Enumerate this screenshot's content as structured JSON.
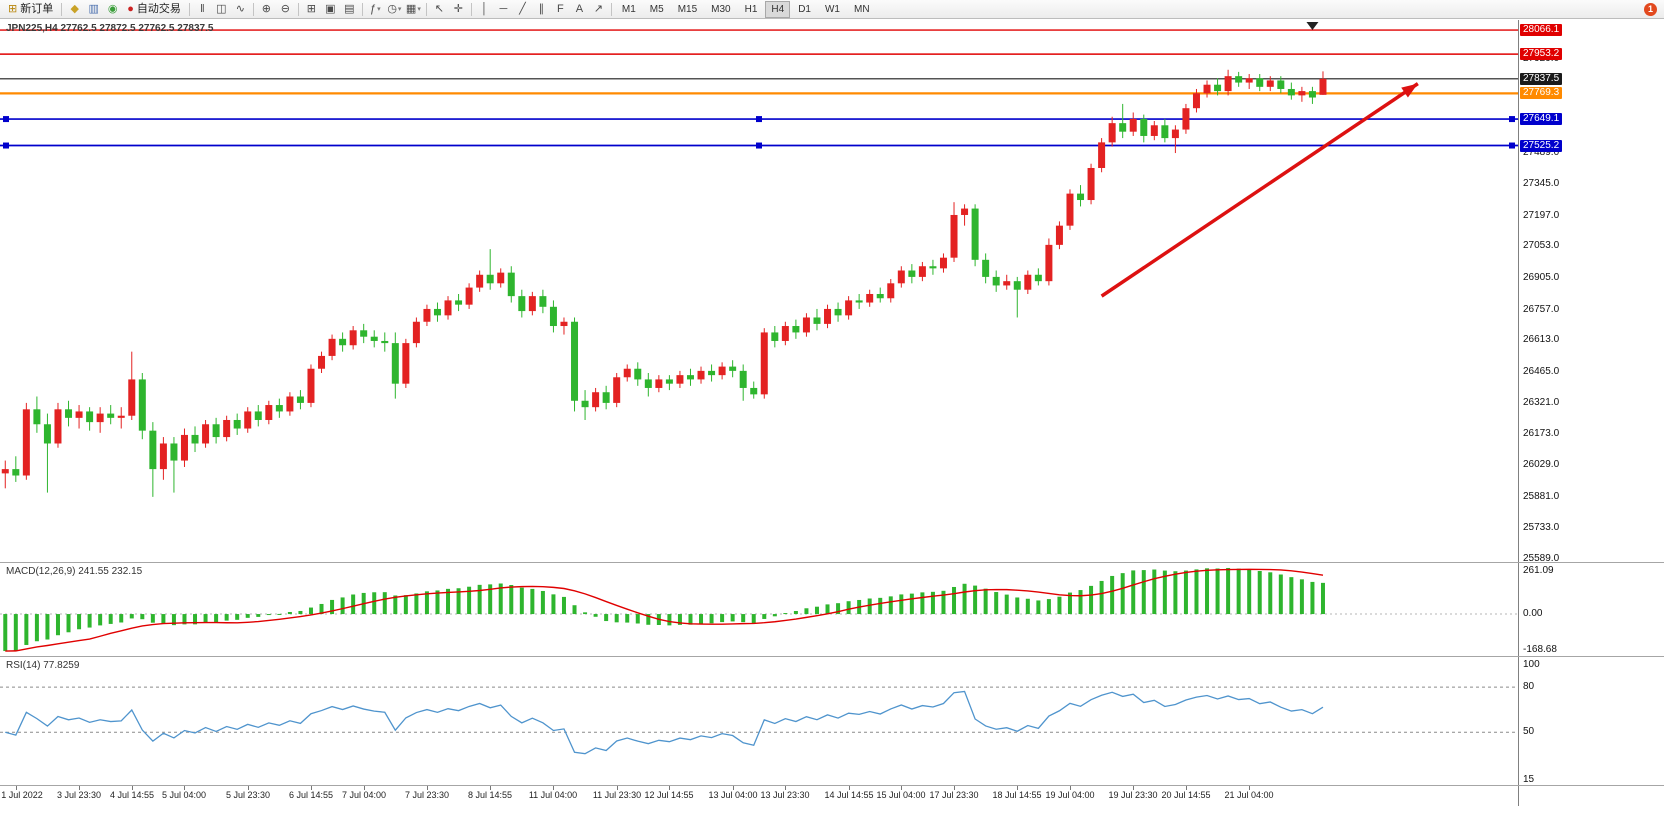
{
  "toolbar": {
    "items": [
      {
        "type": "button",
        "name": "new-order-button",
        "glyph": "⊞",
        "glyph_color": "#b8860b",
        "label": "新订单"
      },
      {
        "type": "sep"
      },
      {
        "type": "icon",
        "name": "depth-of-market-icon",
        "glyph": "◆",
        "color": "#c9a227"
      },
      {
        "type": "icon",
        "name": "charts-grid-icon",
        "glyph": "▥",
        "color": "#4a6fae"
      },
      {
        "type": "icon",
        "name": "navigator-icon",
        "glyph": "◉",
        "color": "#3a9e3a"
      },
      {
        "type": "button",
        "name": "autotrading-button",
        "glyph": "●",
        "glyph_color": "#cc2222",
        "label": "自动交易"
      },
      {
        "type": "sep"
      },
      {
        "type": "icon",
        "name": "bar-chart-type-icon",
        "glyph": "‖"
      },
      {
        "type": "icon",
        "name": "candlestick-type-icon",
        "glyph": "◫"
      },
      {
        "type": "icon",
        "name": "line-chart-type-icon",
        "glyph": "∿"
      },
      {
        "type": "sep"
      },
      {
        "type": "icon",
        "name": "zoom-in-icon",
        "glyph": "⊕"
      },
      {
        "type": "icon",
        "name": "zoom-out-icon",
        "glyph": "⊖"
      },
      {
        "type": "sep"
      },
      {
        "type": "icon",
        "name": "tile-windows-icon",
        "glyph": "⊞"
      },
      {
        "type": "icon",
        "name": "indicators-list-icon",
        "glyph": "▣"
      },
      {
        "type": "icon",
        "name": "objects-list-icon",
        "glyph": "▤"
      },
      {
        "type": "sep"
      },
      {
        "type": "icon",
        "name": "indicators-icon",
        "glyph": "ƒ",
        "dropdown": true
      },
      {
        "type": "icon",
        "name": "periods-icon",
        "glyph": "◷",
        "dropdown": true
      },
      {
        "type": "icon",
        "name": "templates-icon",
        "glyph": "▦",
        "dropdown": true
      },
      {
        "type": "sep"
      },
      {
        "type": "icon",
        "name": "cursor-icon",
        "glyph": "↖"
      },
      {
        "type": "icon",
        "name": "crosshair-icon",
        "glyph": "✛"
      },
      {
        "type": "sep"
      },
      {
        "type": "icon",
        "name": "vertical-line-icon",
        "glyph": "│"
      },
      {
        "type": "icon",
        "name": "horizontal-line-icon",
        "glyph": "─"
      },
      {
        "type": "icon",
        "name": "trendline-icon",
        "glyph": "╱"
      },
      {
        "type": "icon",
        "name": "channel-icon",
        "glyph": "∥"
      },
      {
        "type": "icon",
        "name": "fibonacci-icon",
        "glyph": "F"
      },
      {
        "type": "icon",
        "name": "text-label-icon",
        "glyph": "A"
      },
      {
        "type": "icon",
        "name": "arrows-tool-icon",
        "glyph": "↗"
      },
      {
        "type": "sep"
      },
      {
        "type": "tf",
        "name": "timeframe-switcher",
        "items": [
          "M1",
          "M5",
          "M15",
          "M30",
          "H1",
          "H4",
          "D1",
          "W1",
          "MN"
        ],
        "active": "H4"
      },
      {
        "type": "spacer"
      },
      {
        "type": "badge",
        "name": "notification-badge",
        "text": "1",
        "color": "#e2491e"
      }
    ]
  },
  "chart_data": {
    "type": "candlestick",
    "symbol_title": "JPN225,H4 27762.5 27872.5 27762.5 27837.5",
    "price_range": [
      25575,
      28113
    ],
    "right_margin_slots": 18,
    "colors": {
      "bull": "#e32222",
      "bear": "#2eb52e",
      "macd_hist": "#2eb52e",
      "macd_signal": "#e00000",
      "rsi_line": "#4f94cd"
    },
    "candles": [
      [
        25990,
        26050,
        25920,
        26010
      ],
      [
        26010,
        26070,
        25950,
        25980
      ],
      [
        25980,
        26320,
        25960,
        26290
      ],
      [
        26290,
        26350,
        26180,
        26220
      ],
      [
        26220,
        26270,
        25900,
        26130
      ],
      [
        26130,
        26320,
        26110,
        26290
      ],
      [
        26290,
        26330,
        26210,
        26250
      ],
      [
        26250,
        26310,
        26200,
        26280
      ],
      [
        26280,
        26300,
        26190,
        26230
      ],
      [
        26230,
        26300,
        26180,
        26270
      ],
      [
        26270,
        26310,
        26220,
        26250
      ],
      [
        26250,
        26300,
        26200,
        26260
      ],
      [
        26260,
        26560,
        26240,
        26430
      ],
      [
        26430,
        26460,
        26150,
        26190
      ],
      [
        26190,
        26230,
        25880,
        26010
      ],
      [
        26010,
        26160,
        25960,
        26130
      ],
      [
        26130,
        26160,
        25900,
        26050
      ],
      [
        26050,
        26200,
        26020,
        26170
      ],
      [
        26170,
        26210,
        26090,
        26130
      ],
      [
        26130,
        26240,
        26110,
        26220
      ],
      [
        26220,
        26250,
        26130,
        26160
      ],
      [
        26160,
        26260,
        26140,
        26240
      ],
      [
        26240,
        26270,
        26170,
        26200
      ],
      [
        26200,
        26300,
        26180,
        26280
      ],
      [
        26280,
        26310,
        26210,
        26240
      ],
      [
        26240,
        26330,
        26220,
        26310
      ],
      [
        26310,
        26340,
        26250,
        26280
      ],
      [
        26280,
        26370,
        26260,
        26350
      ],
      [
        26350,
        26380,
        26290,
        26320
      ],
      [
        26320,
        26500,
        26300,
        26480
      ],
      [
        26480,
        26560,
        26460,
        26540
      ],
      [
        26540,
        26640,
        26520,
        26620
      ],
      [
        26620,
        26650,
        26560,
        26590
      ],
      [
        26590,
        26680,
        26570,
        26660
      ],
      [
        26660,
        26690,
        26600,
        26630
      ],
      [
        26630,
        26660,
        26580,
        26610
      ],
      [
        26610,
        26650,
        26560,
        26600
      ],
      [
        26600,
        26650,
        26340,
        26410
      ],
      [
        26410,
        26620,
        26390,
        26600
      ],
      [
        26600,
        26720,
        26580,
        26700
      ],
      [
        26700,
        26780,
        26680,
        26760
      ],
      [
        26760,
        26790,
        26700,
        26730
      ],
      [
        26730,
        26820,
        26710,
        26800
      ],
      [
        26800,
        26830,
        26750,
        26780
      ],
      [
        26780,
        26880,
        26760,
        26860
      ],
      [
        26860,
        26940,
        26840,
        26920
      ],
      [
        26920,
        27040,
        26850,
        26880
      ],
      [
        26880,
        26950,
        26860,
        26930
      ],
      [
        26930,
        26960,
        26790,
        26820
      ],
      [
        26820,
        26850,
        26720,
        26750
      ],
      [
        26750,
        26840,
        26730,
        26820
      ],
      [
        26820,
        26850,
        26740,
        26770
      ],
      [
        26770,
        26800,
        26650,
        26680
      ],
      [
        26680,
        26720,
        26640,
        26700
      ],
      [
        26700,
        26720,
        26280,
        26330
      ],
      [
        26330,
        26380,
        26240,
        26300
      ],
      [
        26300,
        26390,
        26280,
        26370
      ],
      [
        26370,
        26400,
        26290,
        26320
      ],
      [
        26320,
        26460,
        26300,
        26440
      ],
      [
        26440,
        26500,
        26420,
        26480
      ],
      [
        26480,
        26510,
        26400,
        26430
      ],
      [
        26430,
        26460,
        26350,
        26390
      ],
      [
        26390,
        26450,
        26370,
        26430
      ],
      [
        26430,
        26450,
        26380,
        26410
      ],
      [
        26410,
        26470,
        26390,
        26450
      ],
      [
        26450,
        26480,
        26400,
        26430
      ],
      [
        26430,
        26490,
        26410,
        26470
      ],
      [
        26470,
        26500,
        26420,
        26450
      ],
      [
        26450,
        26510,
        26430,
        26490
      ],
      [
        26490,
        26520,
        26440,
        26470
      ],
      [
        26470,
        26500,
        26330,
        26390
      ],
      [
        26390,
        26420,
        26340,
        26360
      ],
      [
        26360,
        26670,
        26340,
        26650
      ],
      [
        26650,
        26680,
        26580,
        26610
      ],
      [
        26610,
        26700,
        26590,
        26680
      ],
      [
        26680,
        26710,
        26620,
        26650
      ],
      [
        26650,
        26740,
        26630,
        26720
      ],
      [
        26720,
        26760,
        26660,
        26690
      ],
      [
        26690,
        26780,
        26670,
        26760
      ],
      [
        26760,
        26790,
        26700,
        26730
      ],
      [
        26730,
        26820,
        26710,
        26800
      ],
      [
        26800,
        26830,
        26760,
        26790
      ],
      [
        26790,
        26850,
        26770,
        26830
      ],
      [
        26830,
        26860,
        26790,
        26810
      ],
      [
        26810,
        26900,
        26790,
        26880
      ],
      [
        26880,
        26960,
        26860,
        26940
      ],
      [
        26940,
        26970,
        26880,
        26910
      ],
      [
        26910,
        26980,
        26890,
        26960
      ],
      [
        26960,
        26990,
        26920,
        26950
      ],
      [
        26950,
        27020,
        26930,
        27000
      ],
      [
        27000,
        27260,
        26980,
        27200
      ],
      [
        27200,
        27250,
        27150,
        27230
      ],
      [
        27230,
        27250,
        26960,
        26990
      ],
      [
        26990,
        27020,
        26880,
        26910
      ],
      [
        26910,
        26940,
        26840,
        26870
      ],
      [
        26870,
        26920,
        26850,
        26890
      ],
      [
        26890,
        26910,
        26720,
        26850
      ],
      [
        26850,
        26940,
        26830,
        26920
      ],
      [
        26920,
        26950,
        26870,
        26890
      ],
      [
        26890,
        27090,
        26870,
        27060
      ],
      [
        27060,
        27170,
        27040,
        27150
      ],
      [
        27150,
        27320,
        27130,
        27300
      ],
      [
        27300,
        27340,
        27240,
        27270
      ],
      [
        27270,
        27440,
        27250,
        27420
      ],
      [
        27420,
        27560,
        27400,
        27540
      ],
      [
        27540,
        27660,
        27520,
        27630
      ],
      [
        27630,
        27720,
        27560,
        27590
      ],
      [
        27590,
        27680,
        27570,
        27650
      ],
      [
        27650,
        27670,
        27540,
        27570
      ],
      [
        27570,
        27640,
        27550,
        27620
      ],
      [
        27620,
        27650,
        27540,
        27560
      ],
      [
        27560,
        27620,
        27490,
        27600
      ],
      [
        27600,
        27720,
        27580,
        27700
      ],
      [
        27700,
        27790,
        27680,
        27770
      ],
      [
        27770,
        27830,
        27750,
        27810
      ],
      [
        27810,
        27840,
        27760,
        27780
      ],
      [
        27780,
        27880,
        27760,
        27850
      ],
      [
        27850,
        27870,
        27800,
        27820
      ],
      [
        27820,
        27860,
        27790,
        27840
      ],
      [
        27840,
        27860,
        27780,
        27800
      ],
      [
        27800,
        27850,
        27780,
        27830
      ],
      [
        27830,
        27850,
        27770,
        27790
      ],
      [
        27790,
        27820,
        27740,
        27760
      ],
      [
        27760,
        27800,
        27730,
        27780
      ],
      [
        27780,
        27800,
        27720,
        27750
      ],
      [
        27762.5,
        27872.5,
        27762.5,
        27837.5
      ]
    ],
    "time_labels": [
      {
        "t": "1 Jul 2022",
        "i": 1
      },
      {
        "t": "3 Jul 23:30",
        "i": 7
      },
      {
        "t": "4 Jul 14:55",
        "i": 12
      },
      {
        "t": "5 Jul 04:00",
        "i": 17
      },
      {
        "t": "5 Jul 23:30",
        "i": 23
      },
      {
        "t": "6 Jul 14:55",
        "i": 29
      },
      {
        "t": "7 Jul 04:00",
        "i": 34
      },
      {
        "t": "7 Jul 23:30",
        "i": 40
      },
      {
        "t": "8 Jul 14:55",
        "i": 46
      },
      {
        "t": "11 Jul 04:00",
        "i": 52
      },
      {
        "t": "11 Jul 23:30",
        "i": 58
      },
      {
        "t": "12 Jul 14:55",
        "i": 63
      },
      {
        "t": "13 Jul 04:00",
        "i": 69
      },
      {
        "t": "13 Jul 23:30",
        "i": 74
      },
      {
        "t": "14 Jul 14:55",
        "i": 80
      },
      {
        "t": "15 Jul 04:00",
        "i": 85
      },
      {
        "t": "17 Jul 23:30",
        "i": 90
      },
      {
        "t": "18 Jul 14:55",
        "i": 96
      },
      {
        "t": "19 Jul 04:00",
        "i": 101
      },
      {
        "t": "19 Jul 23:30",
        "i": 107
      },
      {
        "t": "20 Jul 14:55",
        "i": 112
      },
      {
        "t": "21 Jul 04:00",
        "i": 118
      }
    ],
    "price_ticks": [
      "27929.0",
      "27489.0",
      "27345.0",
      "27197.0",
      "27053.0",
      "26905.0",
      "26757.0",
      "26613.0",
      "26465.0",
      "26321.0",
      "26173.0",
      "26029.0",
      "25881.0",
      "25733.0",
      "25589.0"
    ],
    "hlines": [
      {
        "label": "28066.1",
        "price": 28066.1,
        "color": "#e00000",
        "width": 1.4,
        "badge_bg": "#e00000"
      },
      {
        "label": "27953.2",
        "price": 27953.2,
        "color": "#e00000",
        "width": 1.4,
        "badge_bg": "#e00000"
      },
      {
        "label": "27837.5",
        "price": 27837.5,
        "color": "#1b1b1b",
        "width": 1.2,
        "badge_bg": "#1b1b1b"
      },
      {
        "label": "27769.3",
        "price": 27769.3,
        "color": "#ff8a00",
        "width": 2.2,
        "badge_bg": "#ff8a00"
      },
      {
        "label": "27649.1",
        "price": 27649.1,
        "color": "#0000cc",
        "width": 1.7,
        "badge_bg": "#0000cc",
        "handles": true
      },
      {
        "label": "27525.2",
        "price": 27525.2,
        "color": "#0000cc",
        "width": 1.7,
        "badge_bg": "#0000cc",
        "handles": true
      }
    ],
    "annotations": {
      "trend_arrow": {
        "from_slot": 104,
        "from_price": 26820,
        "to_slot": 134,
        "to_price": 27815,
        "color": "#dd1111",
        "width": 3.5
      },
      "top_marker": {
        "slot": 124,
        "color": "#222222"
      }
    },
    "macd": {
      "display": "MACD(12,26,9) 241.55 232.15",
      "params": [
        12,
        26,
        9
      ],
      "axis_labels": {
        "max": "261.09",
        "zero": "0.00",
        "min": "-168.68"
      },
      "seed_ema12": 26150,
      "seed_ema26": 26330
    },
    "rsi": {
      "display": "RSI(14) 77.8259",
      "period": 14,
      "range": [
        15,
        100
      ],
      "levels": [
        80,
        50
      ],
      "axis_labels": {
        "max": "100",
        "levels": [
          "80",
          "50"
        ],
        "min": "15"
      },
      "seed_gain": 30,
      "seed_loss": 30
    }
  }
}
